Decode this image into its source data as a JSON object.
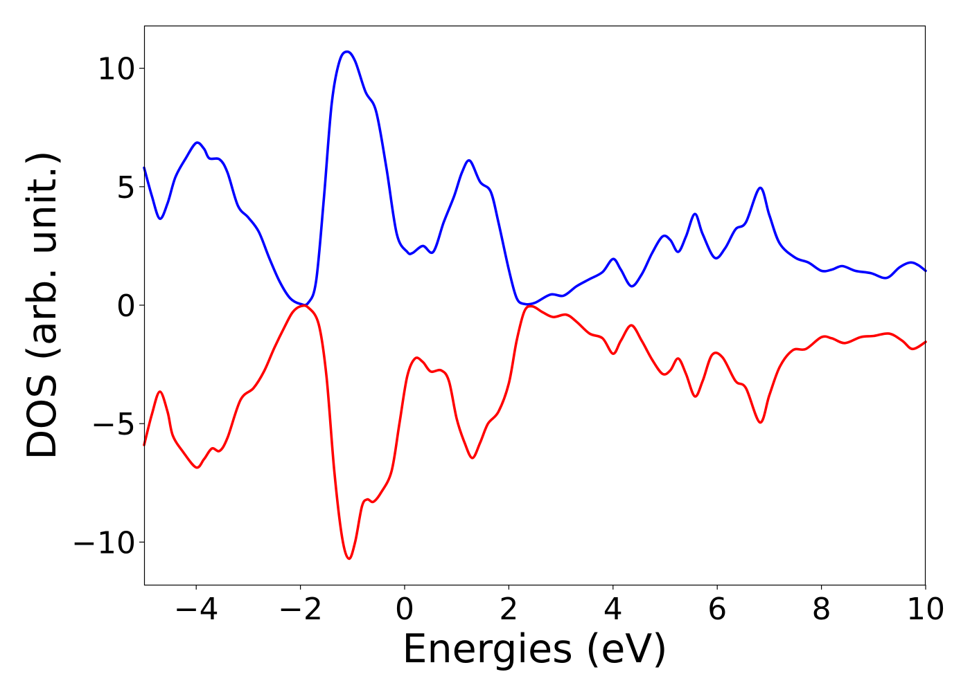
{
  "chart_data": {
    "type": "line",
    "title": "",
    "xlabel": "Energies (eV)",
    "ylabel": "DOS (arb. unit.)",
    "xlim": [
      -5,
      10
    ],
    "ylim": [
      -11.8,
      11.8
    ],
    "x_ticks": [
      -4,
      -2,
      0,
      2,
      4,
      6,
      8,
      10
    ],
    "x_tick_labels": [
      "−4",
      "−2",
      "0",
      "2",
      "4",
      "6",
      "8",
      "10"
    ],
    "y_ticks": [
      10,
      5,
      0,
      -5,
      -10
    ],
    "y_tick_labels": [
      "10",
      "5",
      "0",
      "−5",
      "−10"
    ],
    "grid": false,
    "legend": "none",
    "series": [
      {
        "color": "#0000ff",
        "points": [
          [
            -5.0,
            5.8
          ],
          [
            -4.85,
            4.6
          ],
          [
            -4.7,
            3.65
          ],
          [
            -4.55,
            4.3
          ],
          [
            -4.4,
            5.4
          ],
          [
            -4.2,
            6.2
          ],
          [
            -4.0,
            6.85
          ],
          [
            -3.85,
            6.6
          ],
          [
            -3.75,
            6.2
          ],
          [
            -3.55,
            6.15
          ],
          [
            -3.4,
            5.6
          ],
          [
            -3.2,
            4.2
          ],
          [
            -3.0,
            3.7
          ],
          [
            -2.8,
            3.1
          ],
          [
            -2.6,
            2.0
          ],
          [
            -2.4,
            1.0
          ],
          [
            -2.2,
            0.3
          ],
          [
            -2.0,
            0.05
          ],
          [
            -1.85,
            0.1
          ],
          [
            -1.7,
            1.0
          ],
          [
            -1.55,
            4.5
          ],
          [
            -1.4,
            8.5
          ],
          [
            -1.25,
            10.3
          ],
          [
            -1.1,
            10.7
          ],
          [
            -0.95,
            10.3
          ],
          [
            -0.75,
            9.0
          ],
          [
            -0.55,
            8.2
          ],
          [
            -0.35,
            5.8
          ],
          [
            -0.15,
            3.0
          ],
          [
            0.05,
            2.25
          ],
          [
            0.15,
            2.2
          ],
          [
            0.35,
            2.5
          ],
          [
            0.55,
            2.25
          ],
          [
            0.75,
            3.5
          ],
          [
            0.95,
            4.6
          ],
          [
            1.1,
            5.6
          ],
          [
            1.25,
            6.1
          ],
          [
            1.45,
            5.2
          ],
          [
            1.65,
            4.8
          ],
          [
            1.8,
            3.5
          ],
          [
            2.0,
            1.5
          ],
          [
            2.15,
            0.3
          ],
          [
            2.3,
            0.05
          ],
          [
            2.5,
            0.1
          ],
          [
            2.8,
            0.45
          ],
          [
            3.05,
            0.4
          ],
          [
            3.3,
            0.8
          ],
          [
            3.55,
            1.1
          ],
          [
            3.8,
            1.4
          ],
          [
            4.0,
            1.95
          ],
          [
            4.15,
            1.5
          ],
          [
            4.35,
            0.8
          ],
          [
            4.55,
            1.3
          ],
          [
            4.75,
            2.2
          ],
          [
            4.95,
            2.9
          ],
          [
            5.1,
            2.75
          ],
          [
            5.25,
            2.25
          ],
          [
            5.4,
            2.9
          ],
          [
            5.57,
            3.85
          ],
          [
            5.72,
            3.0
          ],
          [
            5.95,
            2.0
          ],
          [
            6.15,
            2.4
          ],
          [
            6.35,
            3.2
          ],
          [
            6.55,
            3.5
          ],
          [
            6.82,
            4.95
          ],
          [
            7.0,
            3.8
          ],
          [
            7.2,
            2.6
          ],
          [
            7.5,
            2.0
          ],
          [
            7.75,
            1.8
          ],
          [
            8.0,
            1.45
          ],
          [
            8.2,
            1.5
          ],
          [
            8.4,
            1.65
          ],
          [
            8.65,
            1.45
          ],
          [
            8.95,
            1.35
          ],
          [
            9.25,
            1.15
          ],
          [
            9.5,
            1.6
          ],
          [
            9.7,
            1.8
          ],
          [
            9.85,
            1.7
          ],
          [
            10.0,
            1.45
          ]
        ]
      },
      {
        "color": "#ff0000",
        "points": [
          [
            -5.0,
            -5.9
          ],
          [
            -4.85,
            -4.6
          ],
          [
            -4.7,
            -3.65
          ],
          [
            -4.55,
            -4.5
          ],
          [
            -4.45,
            -5.5
          ],
          [
            -4.25,
            -6.2
          ],
          [
            -4.0,
            -6.85
          ],
          [
            -3.85,
            -6.5
          ],
          [
            -3.7,
            -6.05
          ],
          [
            -3.55,
            -6.15
          ],
          [
            -3.4,
            -5.6
          ],
          [
            -3.15,
            -4.0
          ],
          [
            -2.9,
            -3.5
          ],
          [
            -2.7,
            -2.8
          ],
          [
            -2.5,
            -1.8
          ],
          [
            -2.3,
            -0.9
          ],
          [
            -2.15,
            -0.3
          ],
          [
            -2.0,
            -0.05
          ],
          [
            -1.85,
            -0.1
          ],
          [
            -1.65,
            -0.8
          ],
          [
            -1.5,
            -3.0
          ],
          [
            -1.35,
            -7.0
          ],
          [
            -1.2,
            -9.8
          ],
          [
            -1.07,
            -10.7
          ],
          [
            -0.95,
            -10.0
          ],
          [
            -0.82,
            -8.5
          ],
          [
            -0.72,
            -8.2
          ],
          [
            -0.6,
            -8.3
          ],
          [
            -0.45,
            -7.9
          ],
          [
            -0.25,
            -7.0
          ],
          [
            -0.1,
            -5.0
          ],
          [
            0.05,
            -3.0
          ],
          [
            0.2,
            -2.25
          ],
          [
            0.35,
            -2.4
          ],
          [
            0.5,
            -2.8
          ],
          [
            0.7,
            -2.75
          ],
          [
            0.85,
            -3.2
          ],
          [
            1.0,
            -4.8
          ],
          [
            1.15,
            -5.8
          ],
          [
            1.3,
            -6.45
          ],
          [
            1.45,
            -5.8
          ],
          [
            1.6,
            -5.0
          ],
          [
            1.8,
            -4.5
          ],
          [
            2.0,
            -3.3
          ],
          [
            2.15,
            -1.5
          ],
          [
            2.3,
            -0.25
          ],
          [
            2.45,
            -0.05
          ],
          [
            2.65,
            -0.3
          ],
          [
            2.85,
            -0.5
          ],
          [
            3.1,
            -0.4
          ],
          [
            3.3,
            -0.7
          ],
          [
            3.55,
            -1.2
          ],
          [
            3.8,
            -1.4
          ],
          [
            4.0,
            -2.05
          ],
          [
            4.15,
            -1.5
          ],
          [
            4.35,
            -0.85
          ],
          [
            4.55,
            -1.5
          ],
          [
            4.75,
            -2.3
          ],
          [
            4.95,
            -2.9
          ],
          [
            5.1,
            -2.75
          ],
          [
            5.25,
            -2.25
          ],
          [
            5.4,
            -2.9
          ],
          [
            5.57,
            -3.85
          ],
          [
            5.72,
            -3.2
          ],
          [
            5.9,
            -2.1
          ],
          [
            6.1,
            -2.2
          ],
          [
            6.35,
            -3.2
          ],
          [
            6.55,
            -3.5
          ],
          [
            6.82,
            -4.95
          ],
          [
            7.0,
            -3.8
          ],
          [
            7.2,
            -2.6
          ],
          [
            7.45,
            -1.9
          ],
          [
            7.7,
            -1.85
          ],
          [
            8.0,
            -1.35
          ],
          [
            8.2,
            -1.4
          ],
          [
            8.45,
            -1.6
          ],
          [
            8.75,
            -1.35
          ],
          [
            9.0,
            -1.3
          ],
          [
            9.3,
            -1.2
          ],
          [
            9.55,
            -1.5
          ],
          [
            9.75,
            -1.85
          ],
          [
            10.0,
            -1.55
          ]
        ]
      }
    ]
  }
}
